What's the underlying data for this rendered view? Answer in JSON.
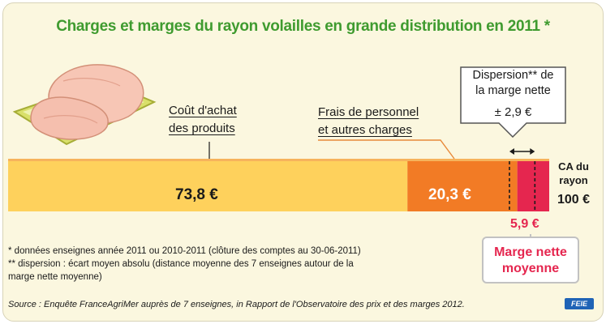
{
  "title": "Charges et marges du rayon volailles en grande distribution en 2011 *",
  "labels": {
    "cost_line1": "Coût d'achat",
    "cost_line2": "des produits",
    "staff_line1": "Frais de personnel",
    "staff_line2": "et autres charges",
    "dispersion_line1": "Dispersion** de",
    "dispersion_line2": "la marge nette",
    "dispersion_value": "± 2,9 €",
    "ca_line1": "CA du",
    "ca_line2": "rayon",
    "ca_value": "100 €",
    "margin_line1": "Marge nette",
    "margin_line2": "moyenne"
  },
  "footnotes": {
    "line1": "* données enseignes année 2011 ou 2010-2011 (clôture des comptes au 30-06-2011)",
    "line2": "** dispersion : écart moyen absolu (distance moyenne des 7 enseignes autour de la",
    "line3": "marge nette moyenne)"
  },
  "source": "Source : Enquête FranceAgriMer auprès de 7 enseignes, in Rapport de l'Observatoire des prix et des marges 2012.",
  "logo": "FEIE",
  "colors": {
    "title": "#3f9b2f",
    "purchase_cost": "#fed15c",
    "staff_charges": "#f27b25",
    "net_margin": "#e5264f",
    "background": "#fbf7df"
  },
  "chart_data": {
    "type": "bar",
    "orientation": "horizontal-stacked",
    "title": "Charges et marges du rayon volailles en grande distribution en 2011 *",
    "total": 100,
    "total_label": "100 €",
    "unit": "€",
    "segments": [
      {
        "name": "Coût d'achat des produits",
        "value": 73.8,
        "label": "73,8 €",
        "color": "#fed15c"
      },
      {
        "name": "Frais de personnel et autres charges",
        "value": 20.3,
        "label": "20,3 €",
        "color": "#f27b25"
      },
      {
        "name": "Marge nette moyenne",
        "value": 5.9,
        "label": "5,9 €",
        "color": "#e5264f"
      }
    ],
    "dispersion": {
      "value": 2.9,
      "label": "± 2,9 €"
    }
  }
}
